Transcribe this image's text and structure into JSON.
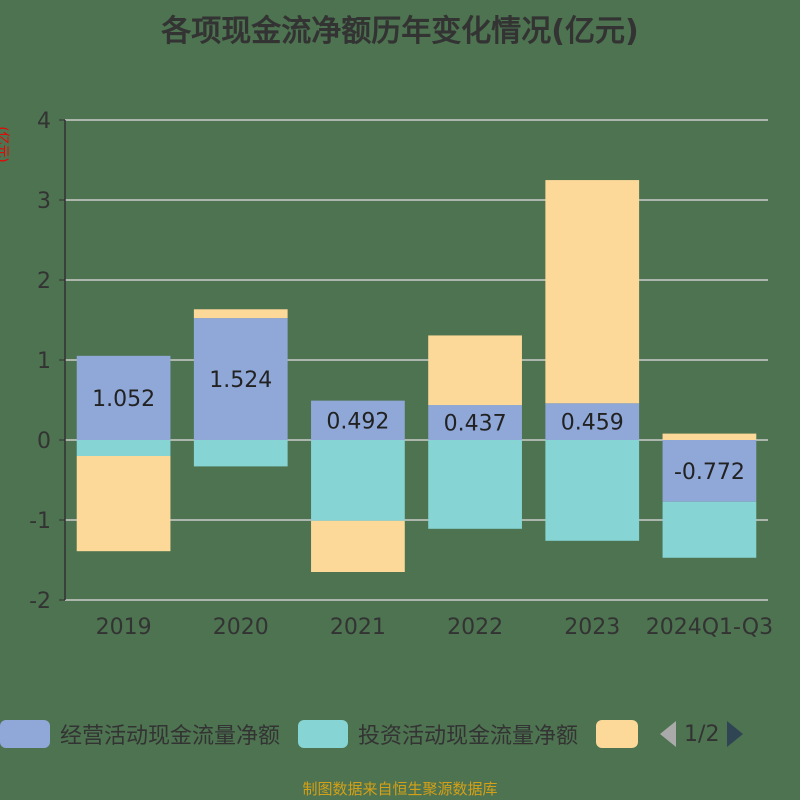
{
  "chart_data": {
    "type": "bar",
    "stacked": true,
    "title": "各项现金流净额历年变化情况(亿元)",
    "ylabel": "(亿元)",
    "categories": [
      "2019",
      "2020",
      "2021",
      "2022",
      "2023",
      "2024Q1-Q3"
    ],
    "ylim": [
      -2,
      4
    ],
    "yticks": [
      -2,
      -1,
      0,
      1,
      2,
      3,
      4
    ],
    "grid": true,
    "legend_position": "bottom",
    "series": [
      {
        "name": "经营活动现金流量净额",
        "color": "#8fa8d8",
        "values": [
          1.052,
          1.524,
          0.492,
          0.437,
          0.459,
          -0.772
        ],
        "labels": [
          "1.052",
          "1.524",
          "0.492",
          "0.437",
          "0.459",
          "-0.772"
        ]
      },
      {
        "name": "投资活动现金流量净额",
        "color": "#86d4d4",
        "values": [
          -0.2,
          -0.33,
          -1.01,
          -1.11,
          -1.26,
          -0.7
        ]
      },
      {
        "color": "#fdd999",
        "values": [
          -1.19,
          0.11,
          -0.64,
          0.87,
          2.79,
          0.08
        ]
      }
    ]
  },
  "legend": {
    "page": "1/2"
  },
  "source": "制图数据来自恒生聚源数据库"
}
